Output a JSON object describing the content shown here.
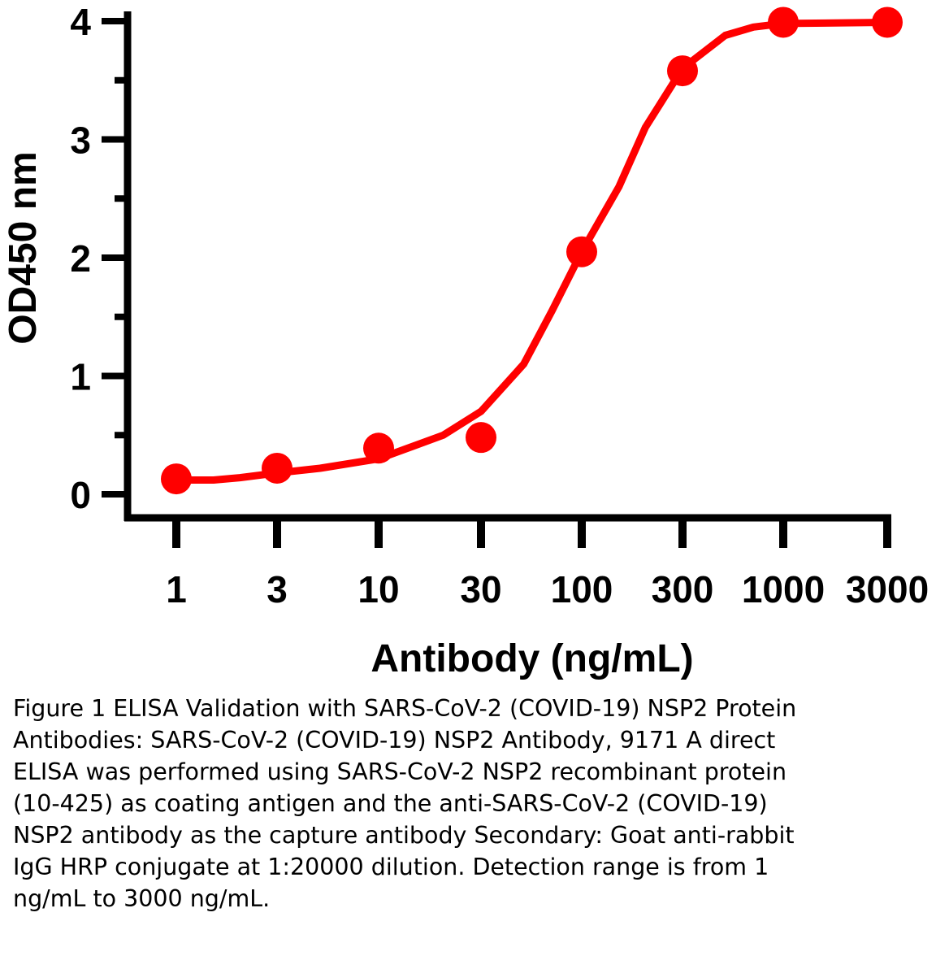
{
  "chart_data": {
    "type": "scatter",
    "title": "",
    "xlabel": "Antibody (ng/mL)",
    "ylabel": "OD450 nm",
    "x_scale": "log",
    "x_ticks": [
      1,
      3,
      10,
      30,
      100,
      300,
      1000,
      3000
    ],
    "x_tick_labels": [
      "1",
      "3",
      "10",
      "30",
      "100",
      "300",
      "1000",
      "3000"
    ],
    "y_ticks": [
      0,
      1,
      2,
      3,
      4
    ],
    "y_tick_labels": [
      "0",
      "1",
      "2",
      "3",
      "4"
    ],
    "ylim": [
      0,
      4
    ],
    "grid": false,
    "legend": "none",
    "color": "#ff0000",
    "series": [
      {
        "x": [
          1,
          3,
          10,
          30,
          100,
          300,
          1000,
          3000
        ],
        "y": [
          0.13,
          0.22,
          0.39,
          0.48,
          2.05,
          3.58,
          3.99,
          3.99
        ]
      }
    ],
    "fit_curve": {
      "type": "sigmoid",
      "x": [
        1,
        1.5,
        2,
        3,
        5,
        10,
        20,
        30,
        50,
        70,
        100,
        150,
        200,
        300,
        500,
        700,
        1000,
        3000
      ],
      "y": [
        0.12,
        0.12,
        0.14,
        0.18,
        0.22,
        0.3,
        0.5,
        0.7,
        1.1,
        1.55,
        2.05,
        2.6,
        3.1,
        3.6,
        3.88,
        3.95,
        3.98,
        3.99
      ]
    }
  },
  "caption": "Figure 1 ELISA Validation with SARS-CoV-2 (COVID-19) NSP2 Protein Antibodies: SARS-CoV-2 (COVID-19) NSP2 Antibody, 9171 A direct ELISA was performed using SARS-CoV-2 NSP2 recombinant protein (10-425) as coating antigen and the anti-SARS-CoV-2 (COVID-19) NSP2 antibody as the capture antibody Secondary: Goat anti-rabbit IgG HRP conjugate at 1:20000 dilution. Detection range is from 1 ng/mL to 3000 ng/mL."
}
